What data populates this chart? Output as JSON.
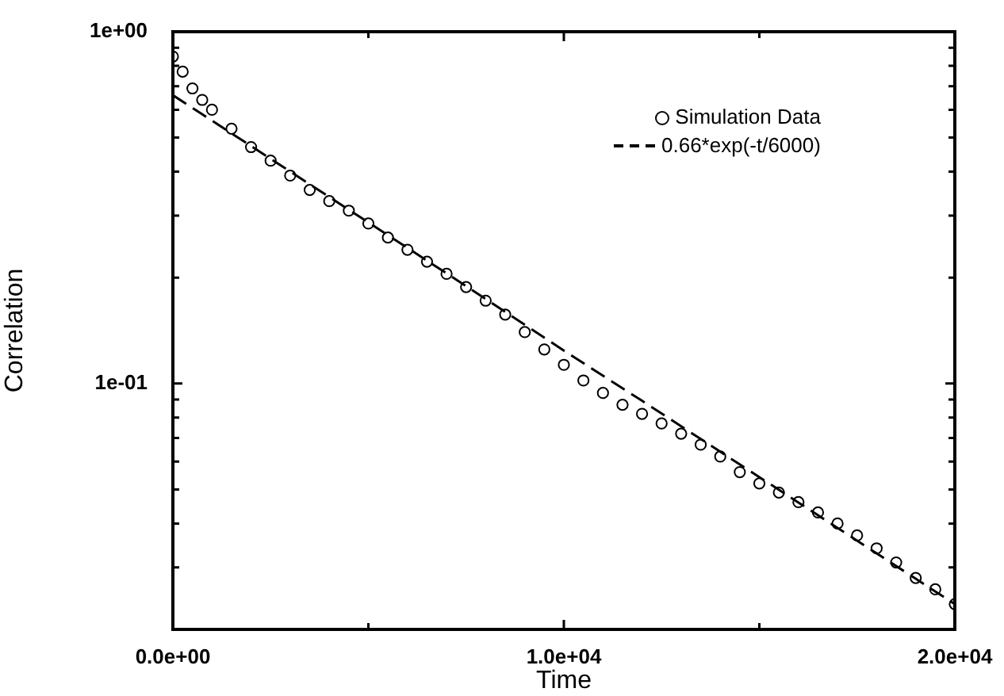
{
  "chart_data": {
    "type": "scatter",
    "xlabel": "Time",
    "ylabel": "Correlation",
    "log": "y",
    "xlim": [
      0,
      20000
    ],
    "ylim": [
      0.02,
      1
    ],
    "xticks": [
      {
        "value": 0,
        "label": "0.0e+00"
      },
      {
        "value": 5000,
        "label": null
      },
      {
        "value": 10000,
        "label": "1.0e+04"
      },
      {
        "value": 15000,
        "label": null
      },
      {
        "value": 20000,
        "label": "2.0e+04"
      }
    ],
    "yticks": [
      {
        "value": 0.02,
        "label": null
      },
      {
        "value": 0.03,
        "label": null
      },
      {
        "value": 0.04,
        "label": null
      },
      {
        "value": 0.05,
        "label": null
      },
      {
        "value": 0.06,
        "label": null
      },
      {
        "value": 0.07,
        "label": null
      },
      {
        "value": 0.08,
        "label": null
      },
      {
        "value": 0.09,
        "label": null
      },
      {
        "value": 0.1,
        "label": "1e-01"
      },
      {
        "value": 0.2,
        "label": null
      },
      {
        "value": 0.3,
        "label": null
      },
      {
        "value": 0.4,
        "label": null
      },
      {
        "value": 0.5,
        "label": null
      },
      {
        "value": 0.6,
        "label": null
      },
      {
        "value": 0.7,
        "label": null
      },
      {
        "value": 0.8,
        "label": null
      },
      {
        "value": 0.9,
        "label": null
      },
      {
        "value": 1,
        "label": "1e+00"
      }
    ],
    "grid": false,
    "legend": "top right",
    "series": [
      {
        "name": "Simulation Data",
        "color": "#000000",
        "marker": "circle",
        "x": [
          0,
          250,
          500,
          750,
          1000,
          1500,
          2000,
          2500,
          3000,
          3500,
          4000,
          4500,
          5000,
          5500,
          6000,
          6500,
          7000,
          7500,
          8000,
          8500,
          9000,
          9500,
          10000,
          10500,
          11000,
          11500,
          12000,
          12500,
          13000,
          13500,
          14000,
          14500,
          15000,
          15500,
          16000,
          16500,
          17000,
          17500,
          18000,
          18500,
          19000,
          19500,
          20000
        ],
        "values": [
          0.85,
          0.77,
          0.69,
          0.64,
          0.6,
          0.53,
          0.47,
          0.43,
          0.39,
          0.355,
          0.33,
          0.31,
          0.285,
          0.26,
          0.24,
          0.222,
          0.205,
          0.188,
          0.172,
          0.157,
          0.14,
          0.125,
          0.113,
          0.102,
          0.094,
          0.087,
          0.082,
          0.077,
          0.072,
          0.067,
          0.062,
          0.056,
          0.052,
          0.049,
          0.046,
          0.043,
          0.04,
          0.037,
          0.034,
          0.031,
          0.028,
          0.026,
          0.0236
        ]
      },
      {
        "name": "0.66*exp(-t/6000)",
        "type": "line",
        "color": "#000000",
        "marker": "none",
        "line_style": "dashed",
        "x": [
          0,
          2000,
          4000,
          6000,
          8000,
          10000,
          12000,
          14000,
          16000,
          18000,
          20000
        ],
        "values": [
          0.66,
          0.473,
          0.339,
          0.243,
          0.174,
          0.124,
          0.0893,
          0.064,
          0.0459,
          0.0329,
          0.0236
        ]
      }
    ]
  }
}
